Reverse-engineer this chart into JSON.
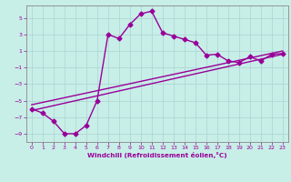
{
  "xlabel": "Windchill (Refroidissement éolien,°C)",
  "background_color": "#c8eee8",
  "grid_color": "#b0d8d4",
  "line_color": "#990099",
  "spine_color": "#888888",
  "xlim": [
    -0.5,
    23.5
  ],
  "ylim": [
    -10.0,
    6.5
  ],
  "xticks": [
    0,
    1,
    2,
    3,
    4,
    5,
    6,
    7,
    8,
    9,
    10,
    11,
    12,
    13,
    14,
    15,
    16,
    17,
    18,
    19,
    20,
    21,
    22,
    23
  ],
  "yticks": [
    -9,
    -7,
    -5,
    -3,
    -1,
    1,
    3,
    5
  ],
  "series1_x": [
    0,
    1,
    2,
    3,
    4,
    5,
    6,
    7,
    8,
    9,
    10,
    11,
    12,
    13,
    14,
    15,
    16,
    17,
    18,
    19,
    20,
    21,
    22,
    23
  ],
  "series1_y": [
    -6.0,
    -6.5,
    -7.5,
    -9.0,
    -9.0,
    -8.0,
    -5.0,
    3.0,
    2.5,
    4.2,
    5.5,
    5.8,
    3.2,
    2.8,
    2.4,
    2.0,
    0.5,
    0.6,
    -0.2,
    -0.4,
    0.3,
    -0.2,
    0.6,
    0.7
  ],
  "series2_x": [
    0,
    23
  ],
  "series2_y": [
    -6.2,
    0.6
  ],
  "series3_x": [
    0,
    23
  ],
  "series3_y": [
    -5.5,
    1.0
  ],
  "marker": "D",
  "markersize": 2.5,
  "linewidth": 1.0
}
